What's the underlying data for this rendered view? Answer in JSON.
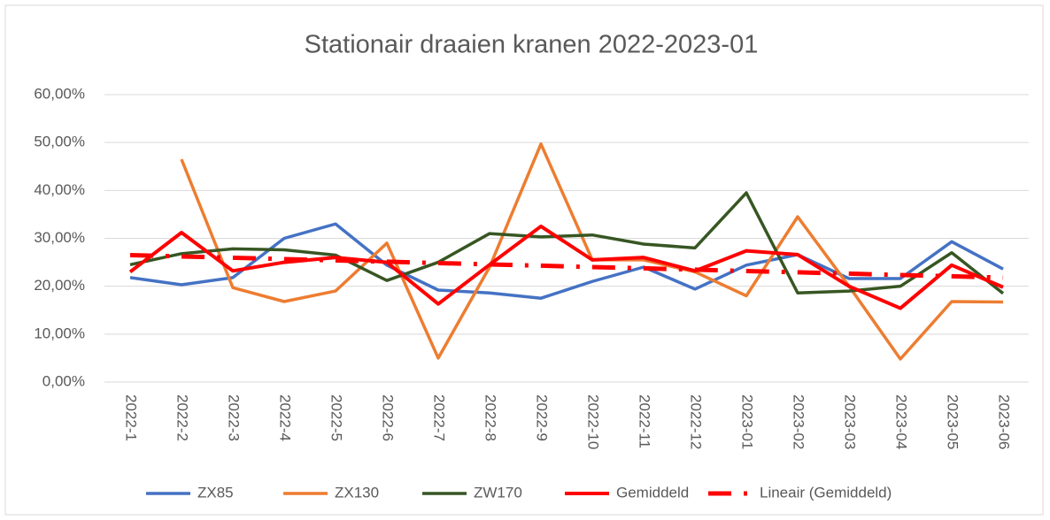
{
  "chart_data": {
    "type": "line",
    "title": "Stationair draaien kranen 2022-2023-01",
    "categories": [
      "2022-1",
      "2022-2",
      "2022-3",
      "2022-4",
      "2022-5",
      "2022-6",
      "2022-7",
      "2022-8",
      "2022-9",
      "2022-10",
      "2022-11",
      "2022-12",
      "2023-01",
      "2023-02",
      "2023-03",
      "2023-04",
      "2023-05",
      "2023-06"
    ],
    "series": [
      {
        "name": "ZX85",
        "color": "#4472c4",
        "values": [
          21.8,
          20.3,
          21.8,
          30,
          33,
          24.4,
          19.2,
          18.6,
          17.5,
          21,
          24,
          19.4,
          24.4,
          26.6,
          21.6,
          21.6,
          29.3,
          23.6
        ]
      },
      {
        "name": "ZX130",
        "color": "#ed7d31",
        "values": [
          null,
          46.5,
          19.7,
          16.8,
          19,
          29,
          5,
          24,
          49.7,
          25.5,
          25.5,
          23,
          18,
          34.5,
          20,
          4.8,
          16.8,
          16.7
        ]
      },
      {
        "name": "ZW170",
        "color": "#375623",
        "values": [
          24.5,
          26.8,
          27.8,
          27.6,
          26.5,
          21.2,
          25,
          31,
          30.3,
          30.7,
          28.8,
          28,
          39.5,
          18.6,
          19,
          20,
          27,
          18.5
        ]
      },
      {
        "name": "Gemiddeld",
        "color": "#ff0000",
        "values": [
          23,
          31.2,
          23.2,
          25,
          26,
          25,
          16.3,
          24.5,
          32.5,
          25.5,
          26,
          23.2,
          27.4,
          26.6,
          20,
          15.4,
          24.4,
          19.8
        ]
      },
      {
        "name": "Lineair (Gemiddeld)",
        "color": "#ff0000",
        "style": "dash-dot",
        "values": [
          26.5,
          26.22,
          25.95,
          25.67,
          25.39,
          25.12,
          24.84,
          24.56,
          24.29,
          24.01,
          23.74,
          23.46,
          23.18,
          22.91,
          22.63,
          22.35,
          22.08,
          21.8
        ]
      }
    ],
    "ylim": [
      0,
      60
    ],
    "yticks": [
      {
        "value": 0,
        "label": "0,00%"
      },
      {
        "value": 10,
        "label": "10,00%"
      },
      {
        "value": 20,
        "label": "20,00%"
      },
      {
        "value": 30,
        "label": "30,00%"
      },
      {
        "value": 40,
        "label": "40,00%"
      },
      {
        "value": 50,
        "label": "50,00%"
      },
      {
        "value": 60,
        "label": "60,00%"
      }
    ],
    "grid": true,
    "legend": "bottom"
  }
}
